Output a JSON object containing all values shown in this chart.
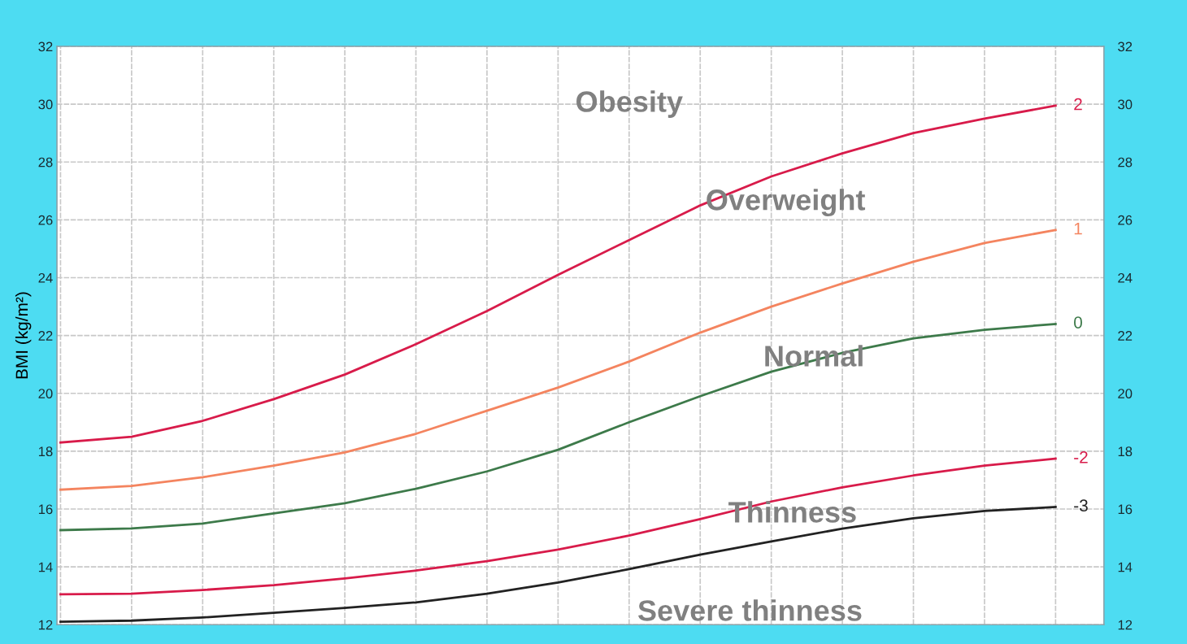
{
  "chart_data": {
    "type": "line",
    "ylabel": "BMI (kg/m²)",
    "categories": [
      null,
      null,
      null,
      null,
      null,
      null,
      null,
      null,
      null,
      null,
      null,
      null,
      null,
      null,
      null
    ],
    "series": [
      {
        "name": "2",
        "color": "#d81b4a",
        "values": [
          18.3,
          18.5,
          19.05,
          19.8,
          20.65,
          21.7,
          22.85,
          24.1,
          25.3,
          26.5,
          27.5,
          28.3,
          29.0,
          29.5,
          29.95
        ]
      },
      {
        "name": "1",
        "color": "#f4845f",
        "values": [
          16.67,
          16.8,
          17.1,
          17.5,
          17.96,
          18.6,
          19.4,
          20.2,
          21.1,
          22.1,
          23.0,
          23.8,
          24.55,
          25.2,
          25.65
        ]
      },
      {
        "name": "0",
        "color": "#3d7a4a",
        "values": [
          15.27,
          15.33,
          15.5,
          15.85,
          16.2,
          16.7,
          17.3,
          18.05,
          19.0,
          19.9,
          20.75,
          21.4,
          21.9,
          22.2,
          22.4
        ]
      },
      {
        "name": "-2",
        "color": "#d81b4a",
        "values": [
          13.05,
          13.07,
          13.2,
          13.37,
          13.6,
          13.87,
          14.2,
          14.6,
          15.08,
          15.65,
          16.26,
          16.75,
          17.16,
          17.5,
          17.74
        ]
      },
      {
        "name": "-3",
        "color": "#222222",
        "values": [
          12.1,
          12.14,
          12.25,
          12.41,
          12.58,
          12.77,
          13.07,
          13.46,
          13.92,
          14.42,
          14.88,
          15.32,
          15.68,
          15.93,
          16.07
        ]
      }
    ],
    "annotations": [
      "Obesity",
      "Overweight",
      "Normal",
      "Thinness",
      "Severe thinness"
    ],
    "ylim": [
      12,
      32
    ],
    "yticks": [
      12,
      14,
      16,
      18,
      20,
      22,
      24,
      26,
      28,
      30,
      32
    ],
    "y2lim": [
      12,
      32
    ],
    "y2ticks": [
      12,
      14,
      16,
      18,
      20,
      22,
      24,
      26,
      28,
      30,
      32
    ],
    "grid": true,
    "legend": false,
    "marker": "none",
    "line_style": "solid"
  }
}
